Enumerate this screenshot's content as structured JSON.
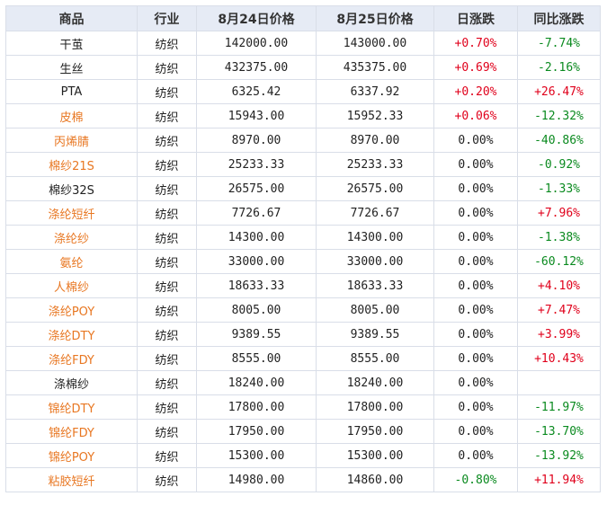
{
  "columns": [
    "商品",
    "行业",
    "8月24日价格",
    "8月25日价格",
    "日涨跌",
    "同比涨跌"
  ],
  "colors": {
    "link": "#e87722",
    "up": "#e0001b",
    "down": "#0a8a1f",
    "header_bg": "#e6ebf5"
  },
  "rows": [
    {
      "name": "干茧",
      "link": false,
      "industry": "纺织",
      "p24": "142000.00",
      "p25": "143000.00",
      "day": "+0.70%",
      "day_dir": "up",
      "yoy": "-7.74%",
      "yoy_dir": "down"
    },
    {
      "name": "生丝",
      "link": false,
      "industry": "纺织",
      "p24": "432375.00",
      "p25": "435375.00",
      "day": "+0.69%",
      "day_dir": "up",
      "yoy": "-2.16%",
      "yoy_dir": "down"
    },
    {
      "name": "PTA",
      "link": false,
      "industry": "纺织",
      "p24": "6325.42",
      "p25": "6337.92",
      "day": "+0.20%",
      "day_dir": "up",
      "yoy": "+26.47%",
      "yoy_dir": "up"
    },
    {
      "name": "皮棉",
      "link": true,
      "industry": "纺织",
      "p24": "15943.00",
      "p25": "15952.33",
      "day": "+0.06%",
      "day_dir": "up",
      "yoy": "-12.32%",
      "yoy_dir": "down"
    },
    {
      "name": "丙烯腈",
      "link": true,
      "industry": "纺织",
      "p24": "8970.00",
      "p25": "8970.00",
      "day": "0.00%",
      "day_dir": "flat",
      "yoy": "-40.86%",
      "yoy_dir": "down"
    },
    {
      "name": "棉纱21S",
      "link": true,
      "industry": "纺织",
      "p24": "25233.33",
      "p25": "25233.33",
      "day": "0.00%",
      "day_dir": "flat",
      "yoy": "-0.92%",
      "yoy_dir": "down"
    },
    {
      "name": "棉纱32S",
      "link": false,
      "industry": "纺织",
      "p24": "26575.00",
      "p25": "26575.00",
      "day": "0.00%",
      "day_dir": "flat",
      "yoy": "-1.33%",
      "yoy_dir": "down"
    },
    {
      "name": "涤纶短纤",
      "link": true,
      "industry": "纺织",
      "p24": "7726.67",
      "p25": "7726.67",
      "day": "0.00%",
      "day_dir": "flat",
      "yoy": "+7.96%",
      "yoy_dir": "up"
    },
    {
      "name": "涤纶纱",
      "link": true,
      "industry": "纺织",
      "p24": "14300.00",
      "p25": "14300.00",
      "day": "0.00%",
      "day_dir": "flat",
      "yoy": "-1.38%",
      "yoy_dir": "down"
    },
    {
      "name": "氨纶",
      "link": true,
      "industry": "纺织",
      "p24": "33000.00",
      "p25": "33000.00",
      "day": "0.00%",
      "day_dir": "flat",
      "yoy": "-60.12%",
      "yoy_dir": "down"
    },
    {
      "name": "人棉纱",
      "link": true,
      "industry": "纺织",
      "p24": "18633.33",
      "p25": "18633.33",
      "day": "0.00%",
      "day_dir": "flat",
      "yoy": "+4.10%",
      "yoy_dir": "up"
    },
    {
      "name": "涤纶POY",
      "link": true,
      "industry": "纺织",
      "p24": "8005.00",
      "p25": "8005.00",
      "day": "0.00%",
      "day_dir": "flat",
      "yoy": "+7.47%",
      "yoy_dir": "up"
    },
    {
      "name": "涤纶DTY",
      "link": true,
      "industry": "纺织",
      "p24": "9389.55",
      "p25": "9389.55",
      "day": "0.00%",
      "day_dir": "flat",
      "yoy": "+3.99%",
      "yoy_dir": "up"
    },
    {
      "name": "涤纶FDY",
      "link": true,
      "industry": "纺织",
      "p24": "8555.00",
      "p25": "8555.00",
      "day": "0.00%",
      "day_dir": "flat",
      "yoy": "+10.43%",
      "yoy_dir": "up"
    },
    {
      "name": "涤棉纱",
      "link": false,
      "industry": "纺织",
      "p24": "18240.00",
      "p25": "18240.00",
      "day": "0.00%",
      "day_dir": "flat",
      "yoy": "",
      "yoy_dir": "flat"
    },
    {
      "name": "锦纶DTY",
      "link": true,
      "industry": "纺织",
      "p24": "17800.00",
      "p25": "17800.00",
      "day": "0.00%",
      "day_dir": "flat",
      "yoy": "-11.97%",
      "yoy_dir": "down"
    },
    {
      "name": "锦纶FDY",
      "link": true,
      "industry": "纺织",
      "p24": "17950.00",
      "p25": "17950.00",
      "day": "0.00%",
      "day_dir": "flat",
      "yoy": "-13.70%",
      "yoy_dir": "down"
    },
    {
      "name": "锦纶POY",
      "link": true,
      "industry": "纺织",
      "p24": "15300.00",
      "p25": "15300.00",
      "day": "0.00%",
      "day_dir": "flat",
      "yoy": "-13.92%",
      "yoy_dir": "down"
    },
    {
      "name": "粘胶短纤",
      "link": true,
      "industry": "纺织",
      "p24": "14980.00",
      "p25": "14860.00",
      "day": "-0.80%",
      "day_dir": "down",
      "yoy": "+11.94%",
      "yoy_dir": "up"
    }
  ]
}
